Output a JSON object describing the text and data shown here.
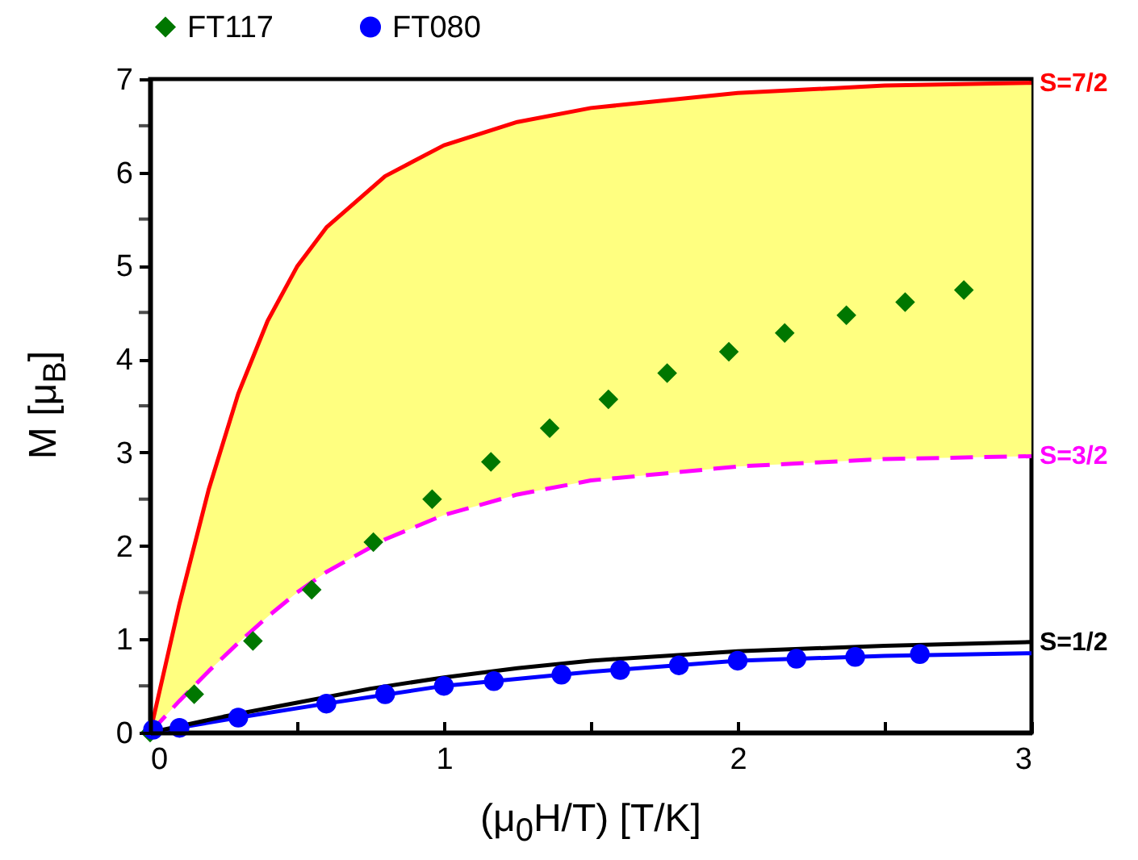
{
  "chart_data": {
    "type": "scatter",
    "xlabel": "(μ$_{0}$H/T)  [T/K]",
    "ylabel": "M [μ$_{B}$]",
    "xlim": [
      0,
      3
    ],
    "ylim": [
      0,
      7
    ],
    "xticks": [
      0,
      {
        "value": 0.5,
        "label": null
      },
      1,
      {
        "value": 1.5,
        "label": null
      },
      2,
      {
        "value": 2.5,
        "label": null
      },
      3
    ],
    "yticks": [
      0,
      {
        "value": 0.5,
        "label": null
      },
      1,
      {
        "value": 1.5,
        "label": null
      },
      2,
      {
        "value": 2.5,
        "label": null
      },
      3,
      {
        "value": 3.5,
        "label": null
      },
      4,
      {
        "value": 4.5,
        "label": null
      },
      5,
      {
        "value": 5.5,
        "label": null
      },
      6,
      {
        "value": 6.5,
        "label": null
      },
      7
    ],
    "legend": "top left",
    "grid": false,
    "series": [
      {
        "name": "FT117",
        "type": "scatter",
        "marker": "diamond",
        "color": "#007700",
        "x": [
          0,
          0.15,
          0.35,
          0.55,
          0.76,
          0.96,
          1.16,
          1.36,
          1.56,
          1.76,
          1.97,
          2.16,
          2.37,
          2.57,
          2.77
        ],
        "values": [
          0,
          0.41,
          0.98,
          1.53,
          2.04,
          2.5,
          2.9,
          3.26,
          3.57,
          3.85,
          4.08,
          4.28,
          4.47,
          4.61,
          4.74
        ]
      },
      {
        "name": "FT080",
        "type": "scatter",
        "marker": "circle",
        "color": "#0000ff",
        "x": [
          0.01,
          0.1,
          0.3,
          0.6,
          0.8,
          1.0,
          1.17,
          1.4,
          1.6,
          1.8,
          2.0,
          2.2,
          2.4,
          2.62
        ],
        "values": [
          0.03,
          0.05,
          0.16,
          0.31,
          0.41,
          0.5,
          0.55,
          0.62,
          0.67,
          0.72,
          0.77,
          0.79,
          0.81,
          0.84
        ]
      },
      {
        "type": "line",
        "marker": "none",
        "line_style": "solid",
        "color": "#0000ff",
        "x": [
          0,
          0.3,
          0.6,
          1,
          1.5,
          2,
          2.5,
          3
        ],
        "values": [
          0,
          0.16,
          0.31,
          0.5,
          0.65,
          0.77,
          0.82,
          0.85
        ]
      },
      {
        "name": "S=7/2",
        "type": "line",
        "marker": "none",
        "line_style": "solid",
        "color": "#ff0000",
        "x": [
          0,
          0.1,
          0.2,
          0.3,
          0.4,
          0.5,
          0.6,
          0.8,
          1,
          1.25,
          1.5,
          2,
          2.5,
          3
        ],
        "values": [
          0,
          1.38,
          2.61,
          3.63,
          4.41,
          4.99,
          5.41,
          5.96,
          6.29,
          6.54,
          6.69,
          6.85,
          6.93,
          6.96
        ],
        "lower": [
          0,
          0.34,
          0.66,
          0.96,
          1.24,
          1.5,
          1.72,
          2.07,
          2.33,
          2.55,
          2.7,
          2.85,
          2.93,
          2.96
        ],
        "upper": [
          0,
          1.38,
          2.61,
          3.63,
          4.41,
          4.99,
          5.41,
          5.96,
          6.29,
          6.54,
          6.69,
          6.85,
          6.93,
          6.96
        ]
      },
      {
        "name": "S=3/2",
        "type": "line",
        "marker": "none",
        "line_style": "dashed",
        "color": "#ff00ff",
        "x": [
          0,
          0.1,
          0.2,
          0.3,
          0.4,
          0.5,
          0.6,
          0.8,
          1,
          1.25,
          1.5,
          2,
          2.5,
          3
        ],
        "values": [
          0,
          0.34,
          0.66,
          0.96,
          1.24,
          1.5,
          1.72,
          2.07,
          2.33,
          2.55,
          2.7,
          2.85,
          2.93,
          2.96
        ]
      },
      {
        "name": "S=1/2",
        "type": "line",
        "marker": "none",
        "line_style": "solid",
        "color": "#000000",
        "x": [
          0,
          0.25,
          0.5,
          0.75,
          1,
          1.25,
          1.5,
          2,
          2.5,
          3
        ],
        "values": [
          0,
          0.17,
          0.32,
          0.47,
          0.59,
          0.69,
          0.77,
          0.87,
          0.93,
          0.97
        ]
      }
    ]
  }
}
